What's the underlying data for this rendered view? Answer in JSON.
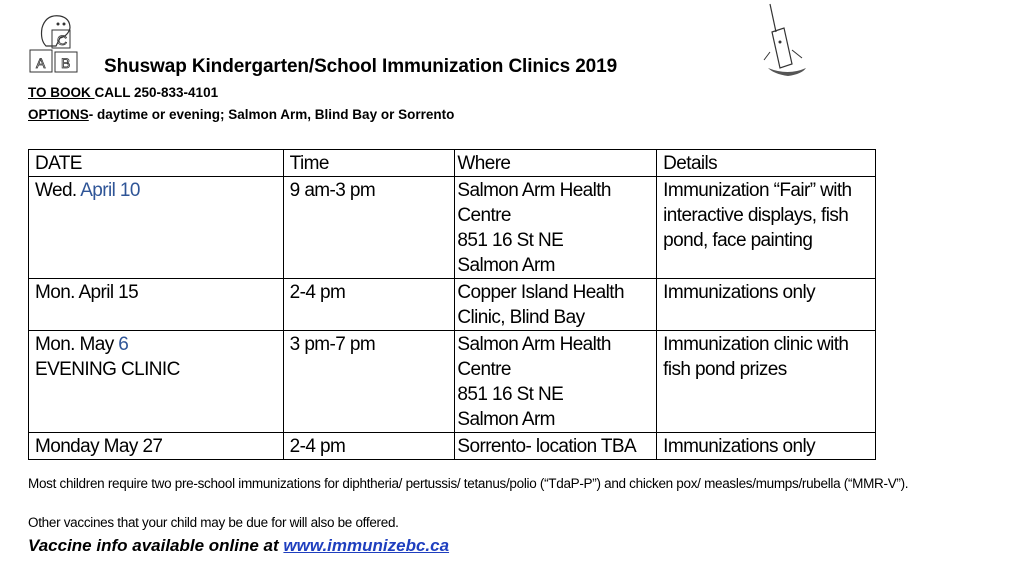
{
  "header": {
    "title": "Shuswap Kindergarten/School Immunization Clinics 2019",
    "book_label": "TO BOOK ",
    "book_call": "CALL 250-833-4101",
    "options_label": "OPTIONS",
    "options_text": "- daytime or evening; Salmon Arm, Blind Bay or Sorrento"
  },
  "logo_left": {
    "icon": "bear-on-abc-blocks",
    "letters": [
      "C",
      "A",
      "B"
    ]
  },
  "logo_right": {
    "icon": "syringe-cartoon"
  },
  "table": {
    "headers": [
      "DATE",
      "Time",
      "Where",
      "Details"
    ],
    "rows": [
      {
        "date_prefix": "Wed. ",
        "date_blue": "April 10",
        "date_suffix": "",
        "time": "9 am-3 pm",
        "where": "Salmon Arm Health\nCentre\n851 16 St NE\nSalmon Arm",
        "details": "Immunization “Fair” with\ninteractive displays, fish\npond, face painting"
      },
      {
        "date_prefix": "Mon. April 15",
        "date_blue": "",
        "date_suffix": "",
        "time": "2-4 pm",
        "where": "Copper Island Health\nClinic, Blind Bay",
        "details": "Immunizations only"
      },
      {
        "date_prefix": "Mon. May ",
        "date_blue": "6",
        "date_suffix": "\nEVENING CLINIC",
        "time": "3 pm-7 pm",
        "where": "Salmon Arm Health\nCentre\n851 16 St NE\nSalmon Arm",
        "details": "Immunization clinic with\nfish pond prizes"
      },
      {
        "date_prefix": "Monday May 27",
        "date_blue": "",
        "date_suffix": "",
        "time": "2-4 pm",
        "where": "Sorrento- location TBA",
        "details": "Immunizations only"
      }
    ]
  },
  "footer": {
    "note": "Most children require two pre-school immunizations for diphtheria/ pertussis/ tetanus/polio (“TdaP-P”) and chicken pox/ measles/mumps/rubella (“MMR-V”).",
    "note2": "Other vaccines that your child may be due for will also be offered.",
    "info_text": "Vaccine info available online at ",
    "info_link": "www.immunizebc.ca"
  },
  "colors": {
    "link": "#1f3fbf",
    "date_highlight": "#2f5597"
  }
}
